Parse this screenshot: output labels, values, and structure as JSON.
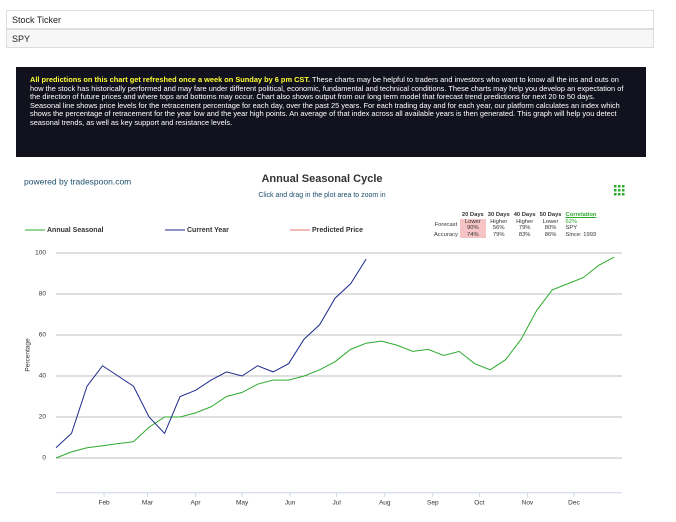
{
  "ticker": {
    "label": "Stock Ticker",
    "value": "SPY"
  },
  "notice": {
    "highlight": "All predictions on this chart get refreshed once a week on Sunday by 6 pm CST.",
    "text": "These charts may be helpful to traders and investors who want to know all the ins and outs on how the stock has historically performed and may fare under different political, economic, fundamental and technical conditions. These charts may help you develop an expectation of the direction of future prices and where tops and bottoms may occur. Chart also shows output from our long term model that forecast trend predictions for next 20 to 50 days.",
    "text2": "Seasonal line shows price levels for the retracement percentage for each day, over the past 25 years. For each trading day and for each year, our platform calculates an index which shows the percentage of retracement for the year low and the year high points. An average of that index across all available years is then generated. This graph will help you detect seasonal trends, as well as key support and resistance levels."
  },
  "credit": "powered by tradespoon.com",
  "forecast_table": {
    "columns": [
      "20 Days",
      "30 Days",
      "40 Days",
      "50 Days",
      "Correlation"
    ],
    "rows": [
      {
        "label": "Forecast",
        "cells": [
          [
            "Lower",
            "90%"
          ],
          [
            "Higher",
            "56%"
          ],
          [
            "Higher",
            "79%"
          ],
          [
            "Lower",
            "80%"
          ]
        ]
      },
      {
        "label": "Accuracy",
        "cells": [
          "74%",
          "79%",
          "83%",
          "86%"
        ]
      }
    ],
    "correlation": [
      "62%",
      "SPY",
      "Since: 1993"
    ]
  },
  "chart_data": {
    "type": "line",
    "title": "Annual Seasonal Cycle",
    "subtitle": "Click and drag in the plot area to zoom in",
    "y_label": "Percentage",
    "x": [
      0,
      10,
      20,
      30,
      40,
      50,
      60,
      70,
      80,
      90,
      100,
      110,
      120,
      130,
      140,
      150,
      160,
      170,
      180,
      190,
      200,
      210,
      220,
      230,
      240,
      250,
      260,
      270,
      280,
      290,
      300,
      310,
      320,
      330,
      340,
      350,
      360
    ],
    "xlim": [
      0,
      365
    ],
    "xticks": [
      {
        "value": 31,
        "label": "Feb"
      },
      {
        "value": 59,
        "label": "Mar"
      },
      {
        "value": 90,
        "label": "Apr"
      },
      {
        "value": 120,
        "label": "May"
      },
      {
        "value": 151,
        "label": "Jun"
      },
      {
        "value": 181,
        "label": "Jul"
      },
      {
        "value": 212,
        "label": "Aug"
      },
      {
        "value": 243,
        "label": "Sep"
      },
      {
        "value": 273,
        "label": "Oct"
      },
      {
        "value": 304,
        "label": "Nov"
      },
      {
        "value": 334,
        "label": "Dec"
      }
    ],
    "ylim": [
      -16,
      100
    ],
    "yticks": [
      0,
      20,
      40,
      60,
      80,
      100
    ],
    "grid": true,
    "series": [
      {
        "name": "Annual Seasonal",
        "color": "#2eaa2e",
        "values": [
          0,
          3,
          5,
          6,
          7,
          8,
          15,
          20,
          20,
          22,
          25,
          30,
          32,
          36,
          38,
          38,
          40,
          43,
          47,
          53,
          56,
          57,
          55,
          52,
          53,
          50,
          52,
          46,
          43,
          48,
          58,
          72,
          82,
          85,
          88,
          94,
          98
        ]
      },
      {
        "name": "Current Year",
        "color": "#1c2a8c",
        "values": [
          5,
          12,
          35,
          45,
          40,
          35,
          20,
          12,
          30,
          33,
          38,
          42,
          40,
          45,
          42,
          46,
          58,
          65,
          78,
          85,
          97,
          null,
          null,
          null,
          null,
          null,
          null,
          null,
          null,
          null,
          null,
          null,
          null,
          null,
          null,
          null,
          null
        ]
      },
      {
        "name": "Predicted Price",
        "color": "#e8736a",
        "values": [
          null,
          null,
          null,
          null,
          null,
          null,
          null,
          null,
          null,
          null,
          null,
          null,
          null,
          null,
          null,
          null,
          null,
          null,
          null,
          null,
          null,
          null,
          null,
          null,
          null,
          null,
          null,
          null,
          null,
          null,
          null,
          null,
          null,
          null,
          null,
          null,
          null
        ]
      }
    ]
  }
}
